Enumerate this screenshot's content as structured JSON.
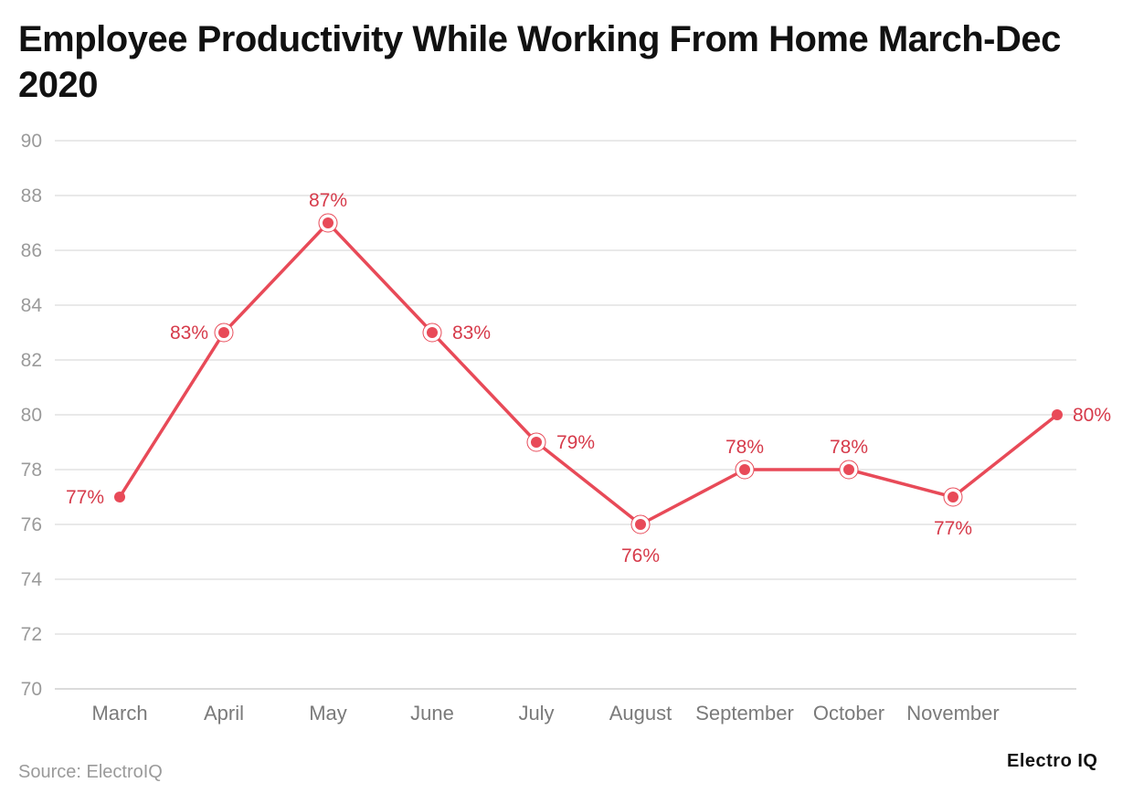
{
  "chart_data": {
    "type": "line",
    "title": "Employee Productivity While Working From Home March-Dec 2020",
    "categories": [
      "March",
      "April",
      "May",
      "June",
      "July",
      "August",
      "September",
      "October",
      "November",
      ""
    ],
    "series": [
      {
        "values": [
          77,
          83,
          87,
          83,
          79,
          76,
          78,
          78,
          77,
          80
        ],
        "labels": [
          "77%",
          "83%",
          "87%",
          "83%",
          "79%",
          "76%",
          "78%",
          "78%",
          "77%",
          "80%"
        ],
        "color": "#e84a58"
      }
    ],
    "ylim": [
      70,
      90
    ],
    "yticks": [
      "70",
      "72",
      "74",
      "76",
      "78",
      "80",
      "82",
      "84",
      "86",
      "88",
      "90"
    ],
    "grid": true,
    "xlabel": "",
    "ylabel": ""
  },
  "footer": {
    "source": "Source: ElectroIQ",
    "brand": "Electro IQ"
  }
}
